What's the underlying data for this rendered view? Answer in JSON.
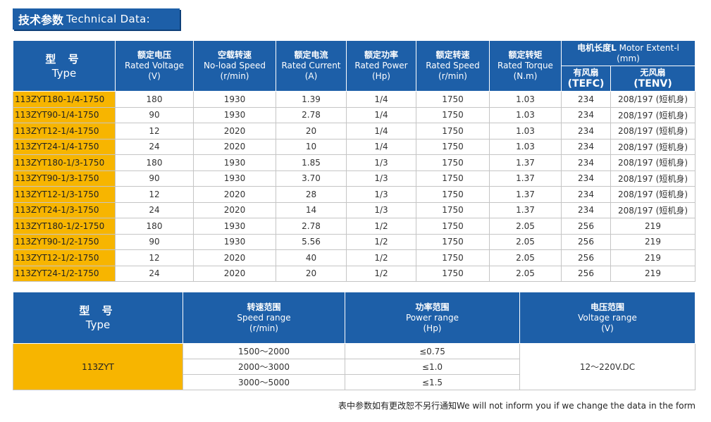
{
  "title": {
    "zh": "技术参数",
    "en": "Technical Data:"
  },
  "table1": {
    "headers": {
      "type": {
        "zh": "型 号",
        "en": "Type"
      },
      "voltage": {
        "zh": "额定电压",
        "en": "Rated Voltage",
        "unit": "(V)"
      },
      "speed_noload": {
        "zh": "空载转速",
        "en": "No-load Speed",
        "unit": "(r/min)"
      },
      "current": {
        "zh": "额定电流",
        "en": "Rated Current",
        "unit": "(A)"
      },
      "power": {
        "zh": "额定功率",
        "en": "Rated Power",
        "unit": "(Hp)"
      },
      "speed_rated": {
        "zh": "额定转速",
        "en": "Rated Speed",
        "unit": "(r/min)"
      },
      "torque": {
        "zh": "额定转矩",
        "en": "Rated Torque",
        "unit": "(N.m)"
      },
      "length": {
        "zh": "电机长度L",
        "en": "Motor Extent-l",
        "unit": "(mm)"
      },
      "tefc": {
        "zh": "有风扇",
        "en": "(TEFC)"
      },
      "tenv": {
        "zh": "无风扇",
        "en": "(TENV)"
      }
    },
    "rows": [
      [
        "113ZYT180-1/4-1750",
        "180",
        "1930",
        "1.39",
        "1/4",
        "1750",
        "1.03",
        "234",
        "208/197 (短机身)"
      ],
      [
        "113ZYT90-1/4-1750",
        "90",
        "1930",
        "2.78",
        "1/4",
        "1750",
        "1.03",
        "234",
        "208/197 (短机身)"
      ],
      [
        "113ZYT12-1/4-1750",
        "12",
        "2020",
        "20",
        "1/4",
        "1750",
        "1.03",
        "234",
        "208/197 (短机身)"
      ],
      [
        "113ZYT24-1/4-1750",
        "24",
        "2020",
        "10",
        "1/4",
        "1750",
        "1.03",
        "234",
        "208/197 (短机身)"
      ],
      [
        "113ZYT180-1/3-1750",
        "180",
        "1930",
        "1.85",
        "1/3",
        "1750",
        "1.37",
        "234",
        "208/197 (短机身)"
      ],
      [
        "113ZYT90-1/3-1750",
        "90",
        "1930",
        "3.70",
        "1/3",
        "1750",
        "1.37",
        "234",
        "208/197 (短机身)"
      ],
      [
        "113ZYT12-1/3-1750",
        "12",
        "2020",
        "28",
        "1/3",
        "1750",
        "1.37",
        "234",
        "208/197 (短机身)"
      ],
      [
        "113ZYT24-1/3-1750",
        "24",
        "2020",
        "14",
        "1/3",
        "1750",
        "1.37",
        "234",
        "208/197 (短机身)"
      ],
      [
        "113ZYT180-1/2-1750",
        "180",
        "1930",
        "2.78",
        "1/2",
        "1750",
        "2.05",
        "256",
        "219"
      ],
      [
        "113ZYT90-1/2-1750",
        "90",
        "1930",
        "5.56",
        "1/2",
        "1750",
        "2.05",
        "256",
        "219"
      ],
      [
        "113ZYT12-1/2-1750",
        "12",
        "2020",
        "40",
        "1/2",
        "1750",
        "2.05",
        "256",
        "219"
      ],
      [
        "113ZYT24-1/2-1750",
        "24",
        "2020",
        "20",
        "1/2",
        "1750",
        "2.05",
        "256",
        "219"
      ]
    ]
  },
  "table2": {
    "headers": {
      "type": {
        "zh": "型 号",
        "en": "Type"
      },
      "speed": {
        "zh": "转速范围",
        "en": "Speed range",
        "unit": "(r/min)"
      },
      "power": {
        "zh": "功率范围",
        "en": "Power range",
        "unit": "(Hp)"
      },
      "voltage": {
        "zh": "电压范围",
        "en": "Voltage range",
        "unit": "(V)"
      }
    },
    "model": "113ZYT",
    "speed_ranges": [
      "1500～2000",
      "2000～3000",
      "3000～5000"
    ],
    "power_ranges": [
      "≤0.75",
      "≤1.0",
      "≤1.5"
    ],
    "voltage_range": "12～220V.DC"
  },
  "footnote": "表中参数如有更改恕不另行通知We will not inform you if we change the data in the form"
}
